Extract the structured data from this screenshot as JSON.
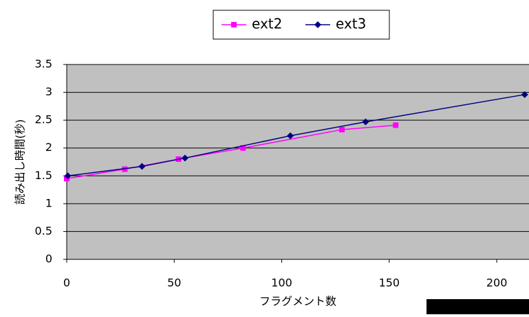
{
  "chart_data": {
    "type": "line",
    "xlabel": "フラグメント数",
    "ylabel": "読み出し時間(秒)",
    "series": [
      {
        "name": "ext2",
        "color": "#ff00ff",
        "marker": "square",
        "x": [
          0,
          27,
          52,
          82,
          128,
          153
        ],
        "values": [
          1.45,
          1.62,
          1.8,
          2.0,
          2.33,
          2.41
        ]
      },
      {
        "name": "ext3",
        "color": "#000080",
        "marker": "diamond",
        "x": [
          0.5,
          35,
          55,
          104,
          139,
          213
        ],
        "values": [
          1.5,
          1.67,
          1.82,
          2.22,
          2.47,
          2.96
        ]
      }
    ],
    "xlim": [
      0,
      215
    ],
    "xticks": [
      0,
      50,
      100,
      150,
      200
    ],
    "ylim": [
      0,
      3.5
    ],
    "yticks": [
      0,
      0.5,
      1,
      1.5,
      2,
      2.5,
      3,
      3.5
    ],
    "grid": true,
    "legend": "top"
  }
}
